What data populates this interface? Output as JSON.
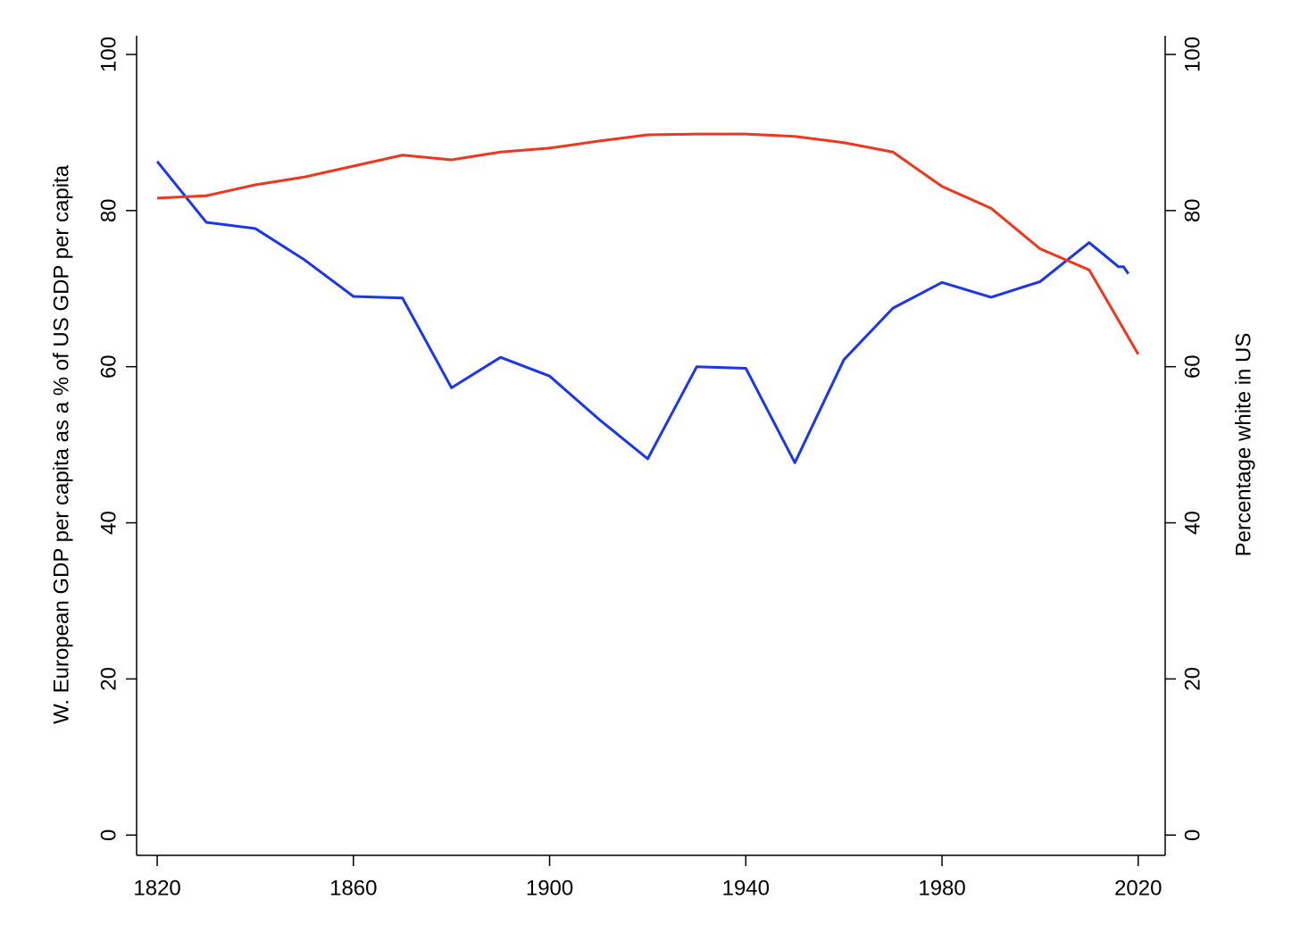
{
  "chart_data": {
    "type": "line",
    "ylabel": "W. European GDP per capita as a % of US GDP per capita",
    "y2label": "Percentage white in US",
    "xlim": [
      1815.8,
      2025.5
    ],
    "xticks": [
      1820,
      1860,
      1900,
      1940,
      1980,
      2020
    ],
    "ylim": [
      -2.6,
      102.4
    ],
    "yticks": [
      0,
      20,
      40,
      60,
      80,
      100
    ],
    "y2lim": [
      -2.6,
      102.4
    ],
    "y2ticks": [
      0,
      20,
      40,
      60,
      80,
      100
    ],
    "series": [
      {
        "color": "#1b36f2",
        "axis": "y",
        "x": [
          1820,
          1830,
          1840,
          1850,
          1860,
          1870,
          1880,
          1890,
          1900,
          1910,
          1920,
          1930,
          1940,
          1950,
          1960,
          1970,
          1980,
          1990,
          2000,
          2010,
          2016,
          2017,
          2018
        ],
        "values": [
          86.3,
          78.5,
          77.7,
          73.7,
          69.0,
          68.8,
          57.3,
          61.2,
          58.8,
          53.3,
          48.2,
          60.0,
          59.8,
          47.7,
          60.9,
          67.5,
          70.8,
          68.9,
          70.9,
          75.9,
          72.8,
          72.8,
          71.9
        ]
      },
      {
        "color": "#f0361c",
        "axis": "y2",
        "x": [
          1820,
          1830,
          1840,
          1850,
          1860,
          1870,
          1880,
          1890,
          1900,
          1910,
          1920,
          1930,
          1940,
          1950,
          1960,
          1970,
          1980,
          1990,
          2000,
          2010,
          2020
        ],
        "values": [
          81.6,
          81.9,
          83.3,
          84.3,
          85.7,
          87.1,
          86.5,
          87.5,
          88.0,
          88.9,
          89.7,
          89.8,
          89.8,
          89.5,
          88.7,
          87.5,
          83.1,
          80.3,
          75.1,
          72.4,
          61.6
        ]
      }
    ]
  }
}
